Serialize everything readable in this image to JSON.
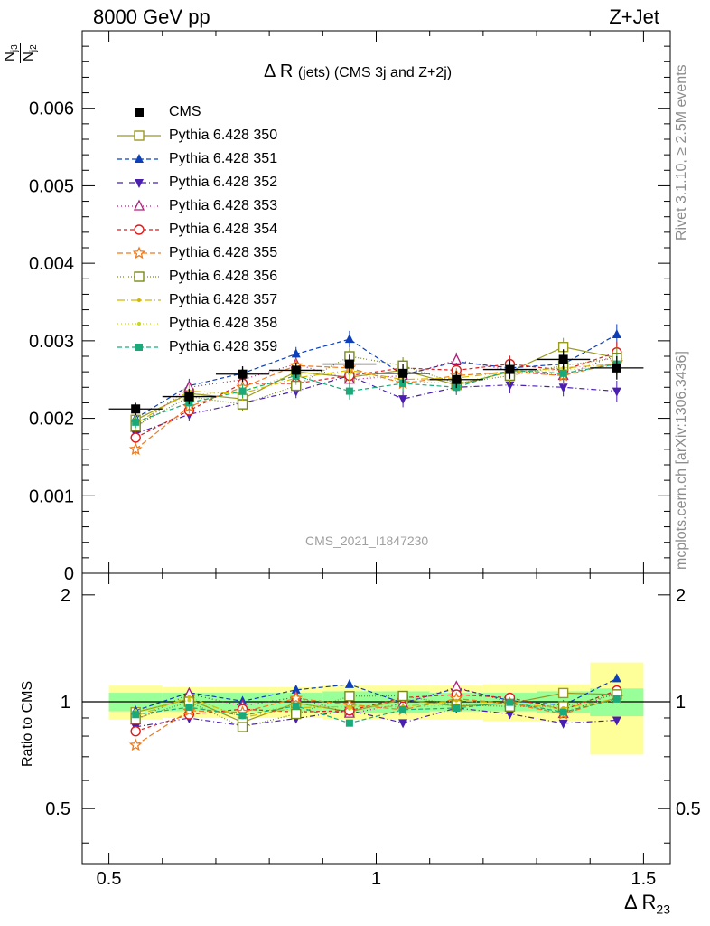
{
  "header": {
    "left": "8000 GeV pp",
    "right": "Z+Jet"
  },
  "title": {
    "main": "Δ R",
    "detail": "(jets) (CMS 3j and Z+2j)"
  },
  "analysis_id": "CMS_2021_I1847230",
  "side_labels": {
    "rivet": "Rivet 3.1.10, ≥ 2.5M events",
    "mcplots": "mcplots.cern.ch [arXiv:1306.3436]"
  },
  "y_label": {
    "num": "N",
    "num_sub": "j3",
    "den": "N",
    "den_sub": "j2"
  },
  "ratio_ylabel": "Ratio to CMS",
  "x_label": {
    "main": "Δ R",
    "sub": "23"
  },
  "chart_data": {
    "type": "line",
    "x": [
      0.55,
      0.65,
      0.75,
      0.85,
      0.95,
      1.05,
      1.15,
      1.25,
      1.35,
      1.45
    ],
    "xlim": [
      0.45,
      1.55
    ],
    "ylim": [
      0,
      0.007
    ],
    "ratio_ylim": [
      0.35,
      2.3
    ],
    "x_ticks": [
      "0.5",
      "1",
      "1.5"
    ],
    "y_ticks": [
      "0",
      "0.001",
      "0.002",
      "0.003",
      "0.004",
      "0.005",
      "0.006"
    ],
    "ratio_ticks": [
      "0.5",
      "1",
      "2"
    ],
    "data": {
      "name": "CMS",
      "color": "#000000",
      "values": [
        0.00212,
        0.00228,
        0.00257,
        0.00262,
        0.0027,
        0.00258,
        0.0025,
        0.00263,
        0.00276,
        0.00265
      ],
      "errors": [
        8e-05,
        0.0001,
        0.0001,
        0.0001,
        0.00012,
        0.00012,
        0.00011,
        0.00012,
        0.00013,
        0.00015
      ],
      "band_inner": [
        0.06,
        0.06,
        0.06,
        0.06,
        0.07,
        0.07,
        0.06,
        0.06,
        0.07,
        0.09
      ],
      "band_outer": [
        0.11,
        0.1,
        0.1,
        0.1,
        0.11,
        0.11,
        0.11,
        0.12,
        0.12,
        0.29
      ]
    },
    "series": [
      {
        "name": "Pythia 6.428 350",
        "color": "#9a9a1f",
        "dash": "",
        "marker": "square-open",
        "values": [
          0.00198,
          0.00232,
          0.00225,
          0.0026,
          0.00253,
          0.00262,
          0.00243,
          0.0026,
          0.00292,
          0.00278
        ]
      },
      {
        "name": "Pythia 6.428 351",
        "color": "#0d40b8",
        "dash": "5,3",
        "marker": "triangle-up",
        "values": [
          0.002,
          0.00242,
          0.00258,
          0.00283,
          0.00302,
          0.00256,
          0.00273,
          0.00265,
          0.0027,
          0.00308
        ]
      },
      {
        "name": "Pythia 6.428 352",
        "color": "#4a1fb0",
        "dash": "6,3,1,3",
        "marker": "triangle-down",
        "values": [
          0.0018,
          0.00205,
          0.0022,
          0.00235,
          0.00255,
          0.00225,
          0.0024,
          0.00243,
          0.0024,
          0.00235
        ]
      },
      {
        "name": "Pythia 6.428 353",
        "color": "#b0207a",
        "dash": "1,3",
        "marker": "triangle-open",
        "values": [
          0.00188,
          0.0024,
          0.0025,
          0.0027,
          0.0025,
          0.00255,
          0.00275,
          0.00262,
          0.00255,
          0.00282
        ]
      },
      {
        "name": "Pythia 6.428 354",
        "color": "#e01a1a",
        "dash": "4,3",
        "marker": "circle-open",
        "values": [
          0.00175,
          0.0021,
          0.00245,
          0.00245,
          0.00255,
          0.00265,
          0.00262,
          0.0027,
          0.00262,
          0.00285
        ]
      },
      {
        "name": "Pythia 6.428 355",
        "color": "#f07a1a",
        "dash": "6,3",
        "marker": "star-open",
        "values": [
          0.0016,
          0.00215,
          0.0024,
          0.00268,
          0.00265,
          0.00245,
          0.00255,
          0.0026,
          0.00255,
          0.00272
        ]
      },
      {
        "name": "Pythia 6.428 356",
        "color": "#7a8a1a",
        "dash": "1,2",
        "marker": "square-open",
        "values": [
          0.0019,
          0.00228,
          0.00218,
          0.00242,
          0.0028,
          0.00268,
          0.00245,
          0.00255,
          0.00268,
          0.00278
        ]
      },
      {
        "name": "Pythia 6.428 357",
        "color": "#d4b800",
        "dash": "8,3,1,3",
        "marker": "dot",
        "values": [
          0.00193,
          0.00235,
          0.00232,
          0.00252,
          0.00262,
          0.0025,
          0.00252,
          0.0026,
          0.00265,
          0.0027
        ]
      },
      {
        "name": "Pythia 6.428 358",
        "color": "#c8d61a",
        "dash": "1,3",
        "marker": "dot",
        "values": [
          0.002,
          0.0023,
          0.00235,
          0.00258,
          0.00258,
          0.00248,
          0.00245,
          0.0026,
          0.00262,
          0.00268
        ]
      },
      {
        "name": "Pythia 6.428 359",
        "color": "#1aaa7a",
        "dash": "5,3",
        "marker": "square-filled",
        "values": [
          0.00195,
          0.0022,
          0.00235,
          0.00255,
          0.00235,
          0.00245,
          0.0024,
          0.00262,
          0.00258,
          0.0027
        ]
      }
    ]
  }
}
